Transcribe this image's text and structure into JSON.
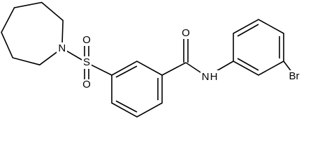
{
  "atoms": [
    {
      "label": "N"
    },
    {
      "label": "S"
    },
    {
      "label": "O"
    },
    {
      "label": "O"
    },
    {
      "label": "O"
    },
    {
      "label": "N"
    },
    {
      "label": "H"
    },
    {
      "label": "Br"
    }
  ]
}
